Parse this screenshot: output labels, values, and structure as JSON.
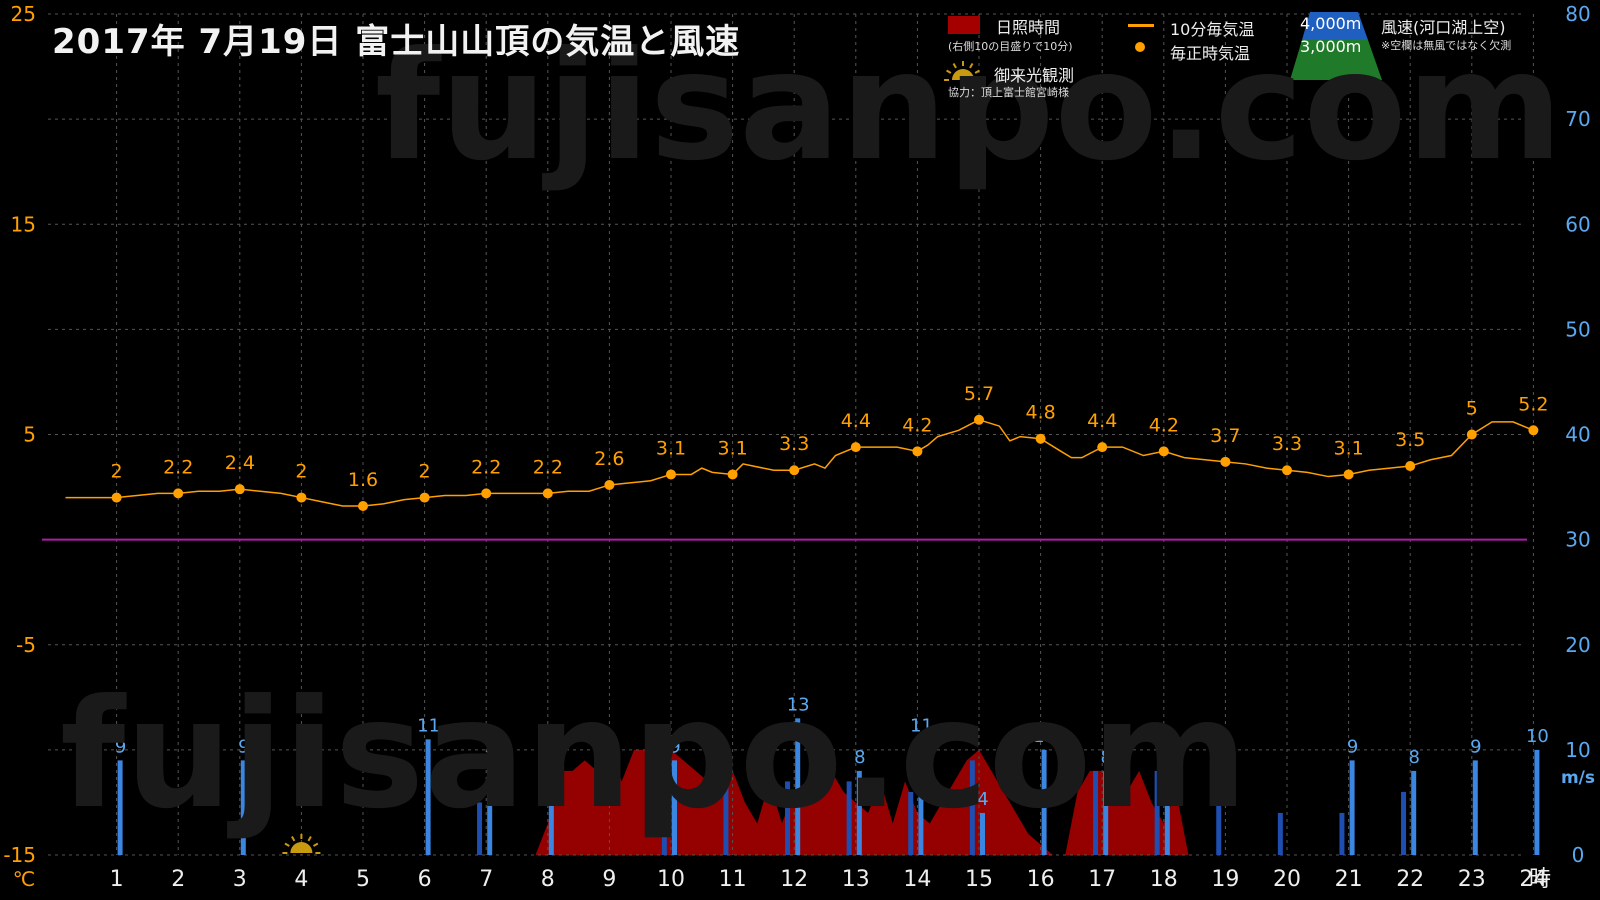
{
  "title": "2017年  7月19日   富士山山頂の気温と風速",
  "watermark": "fujisanpo.com",
  "legend": {
    "sunshine_label": "日照時間",
    "sunshine_note": "(右側10の目盛りで10分)",
    "temp10_label": "10分毎気温",
    "temp_hourly_label": "毎正時気温",
    "sunrise_label": "御来光観測",
    "credit": "協力：頂上富士館宮崎様",
    "alt4000": "4,000m",
    "alt3000": "3,000m",
    "wind_label": "風速(河口湖上空)",
    "wind_note": "※空欄は無風ではなく欠測"
  },
  "colors": {
    "temp": "#ffa000",
    "wind": "#3a86e0",
    "wind_dark": "#1e4fb0",
    "sunshine": "#a50000",
    "zero_line": "#b01ca8",
    "grid": "#555555",
    "left_axis": "#ffa000",
    "right_axis": "#5aa8f0"
  },
  "chart_data": {
    "type": "line",
    "x_unit": "時",
    "left_axis": {
      "unit": "℃",
      "ylim": [
        -15,
        25
      ],
      "ticks": [
        25,
        15,
        5,
        -5,
        -15
      ]
    },
    "right_axis": {
      "unit": "m/s",
      "ylim": [
        0,
        80
      ],
      "ticks": [
        80,
        70,
        60,
        50,
        40,
        30,
        20,
        10,
        0
      ]
    },
    "x_ticks": [
      1,
      2,
      3,
      4,
      5,
      6,
      7,
      8,
      9,
      10,
      11,
      12,
      13,
      14,
      15,
      16,
      17,
      18,
      19,
      20,
      21,
      22,
      23,
      24
    ],
    "hourly_temp": {
      "name": "毎正時気温",
      "x": [
        1,
        2,
        3,
        4,
        5,
        6,
        7,
        8,
        9,
        10,
        11,
        12,
        13,
        14,
        15,
        16,
        17,
        18,
        19,
        20,
        21,
        22,
        23,
        24
      ],
      "values": [
        2,
        2.2,
        2.4,
        2,
        1.6,
        2,
        2.2,
        2.2,
        2.6,
        3.1,
        3.1,
        3.3,
        4.4,
        4.2,
        5.7,
        4.8,
        4.4,
        4.2,
        3.7,
        3.3,
        3.1,
        3.5,
        5,
        5.2
      ]
    },
    "temp_10min": {
      "name": "10分毎気温",
      "x": [
        0.17,
        0.5,
        0.83,
        1.0,
        1.33,
        1.67,
        2.0,
        2.33,
        2.67,
        3.0,
        3.33,
        3.67,
        4.0,
        4.33,
        4.67,
        5.0,
        5.33,
        5.67,
        6.0,
        6.33,
        6.67,
        7.0,
        7.33,
        7.67,
        8.0,
        8.33,
        8.67,
        9.0,
        9.33,
        9.67,
        10.0,
        10.33,
        10.5,
        10.67,
        11.0,
        11.17,
        11.33,
        11.67,
        12.0,
        12.33,
        12.5,
        12.67,
        13.0,
        13.33,
        13.67,
        14.0,
        14.17,
        14.33,
        14.67,
        15.0,
        15.33,
        15.5,
        15.67,
        16.0,
        16.33,
        16.5,
        16.67,
        17.0,
        17.33,
        17.67,
        18.0,
        18.33,
        18.67,
        19.0,
        19.33,
        19.67,
        20.0,
        20.33,
        20.67,
        21.0,
        21.33,
        21.67,
        22.0,
        22.33,
        22.67,
        23.0,
        23.33,
        23.67,
        24.0
      ],
      "values": [
        2,
        2,
        2,
        2,
        2.1,
        2.2,
        2.2,
        2.3,
        2.3,
        2.4,
        2.3,
        2.2,
        2,
        1.8,
        1.6,
        1.6,
        1.7,
        1.9,
        2,
        2.1,
        2.1,
        2.2,
        2.2,
        2.2,
        2.2,
        2.3,
        2.3,
        2.6,
        2.7,
        2.8,
        3.1,
        3.1,
        3.4,
        3.2,
        3.1,
        3.6,
        3.5,
        3.3,
        3.3,
        3.6,
        3.4,
        4.0,
        4.4,
        4.4,
        4.4,
        4.2,
        4.5,
        4.9,
        5.2,
        5.7,
        5.4,
        4.7,
        4.9,
        4.8,
        4.2,
        3.9,
        3.9,
        4.4,
        4.4,
        4.0,
        4.2,
        3.9,
        3.8,
        3.7,
        3.6,
        3.4,
        3.3,
        3.2,
        3.0,
        3.1,
        3.3,
        3.4,
        3.5,
        3.8,
        4.0,
        5.0,
        5.6,
        5.6,
        5.2
      ]
    },
    "wind_4000m": {
      "name": "4,000m",
      "x": [
        1,
        3,
        6,
        7,
        8,
        10,
        12,
        13,
        14,
        15,
        16,
        17,
        18,
        21,
        22,
        23,
        24
      ],
      "values": [
        9,
        9,
        11,
        9,
        9,
        9,
        13,
        8,
        11,
        4,
        10,
        8,
        9,
        9,
        8,
        9,
        10
      ],
      "labels": [
        "9",
        "9",
        "11",
        "9",
        "9",
        "9",
        "13",
        "8",
        "11",
        "4",
        "10",
        "8",
        "9",
        "9",
        "8",
        "9",
        "10"
      ]
    },
    "wind_3000m": {
      "name": "3,000m",
      "x": [
        6.9,
        9.9,
        10.9,
        11.9,
        12.9,
        13.9,
        14.9,
        16.9,
        17.9,
        18.9,
        19.9,
        20.9,
        21.9
      ],
      "values": [
        5,
        7,
        7,
        7,
        7,
        6,
        9,
        8,
        8,
        6,
        4,
        4,
        6
      ]
    },
    "sunshine_minutes": {
      "name": "日照時間",
      "x": [
        7.8,
        8.0,
        8.2,
        8.4,
        8.6,
        8.8,
        9.0,
        9.2,
        9.4,
        9.6,
        9.8,
        10.0,
        10.2,
        10.4,
        10.6,
        10.8,
        11.0,
        11.2,
        11.4,
        11.6,
        11.8,
        12.0,
        12.2,
        12.4,
        12.6,
        12.8,
        13.0,
        13.2,
        13.4,
        13.6,
        13.8,
        14.0,
        14.2,
        14.4,
        14.6,
        14.8,
        15.0,
        15.2,
        15.4,
        15.6,
        15.8,
        16.0,
        16.2,
        16.4,
        16.6,
        16.8,
        17.0,
        17.2,
        17.4,
        17.6,
        17.8,
        18.0,
        18.2,
        18.4,
        18.6
      ],
      "values": [
        0,
        3,
        8,
        8,
        9,
        8,
        10,
        7,
        10,
        10,
        10,
        10,
        9,
        8,
        7,
        6,
        8,
        5,
        3,
        7,
        3,
        6,
        7,
        10,
        8,
        6,
        5,
        4,
        7,
        3,
        7,
        4,
        3,
        5,
        7,
        9,
        10,
        8,
        6,
        4,
        2,
        1,
        0,
        0,
        6,
        8,
        8,
        7,
        6,
        8,
        5,
        3,
        6,
        0,
        0
      ]
    },
    "sunrise_hour": 4
  }
}
